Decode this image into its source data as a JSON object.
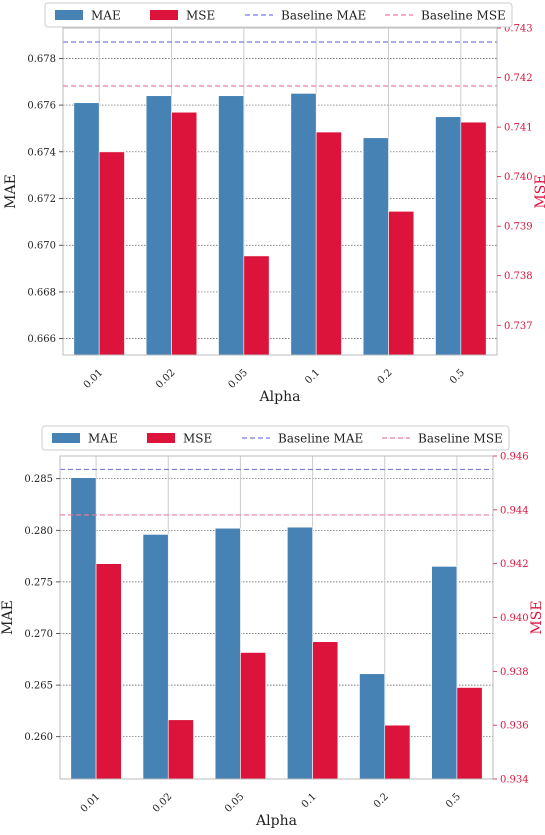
{
  "chart_data": [
    {
      "type": "bar",
      "categories": [
        "0.01",
        "0.02",
        "0.05",
        "0.1",
        "0.2",
        "0.5"
      ],
      "xlabel": "Alpha",
      "ylabel_left": "MAE",
      "ylabel_right": "MSE",
      "left_axis": {
        "ylim": [
          0.6653,
          0.6793
        ],
        "ticks": [
          "0.666",
          "0.668",
          "0.670",
          "0.672",
          "0.674",
          "0.676",
          "0.678"
        ]
      },
      "right_axis": {
        "ylim": [
          0.7364,
          0.743
        ],
        "ticks": [
          "0.737",
          "0.738",
          "0.739",
          "0.740",
          "0.741",
          "0.742",
          "0.743"
        ]
      },
      "series": [
        {
          "name": "MAE",
          "axis": "left",
          "color": "#4682b4",
          "values": [
            0.6761,
            0.6764,
            0.6764,
            0.6765,
            0.6746,
            0.6755
          ]
        },
        {
          "name": "MSE",
          "axis": "right",
          "color": "#dc143c",
          "values": [
            0.7405,
            0.7413,
            0.7384,
            0.7409,
            0.7393,
            0.7411
          ]
        }
      ],
      "baselines": [
        {
          "name": "Baseline MAE",
          "axis": "left",
          "value": 0.6787,
          "color": "#7b7bef"
        },
        {
          "name": "Baseline MSE",
          "axis": "right",
          "value": 0.74183,
          "color": "#ef7b9b"
        }
      ],
      "legend": "top-center",
      "grid": true
    },
    {
      "type": "bar",
      "categories": [
        "0.01",
        "0.02",
        "0.05",
        "0.1",
        "0.2",
        "0.5"
      ],
      "xlabel": "Alpha",
      "ylabel_left": "MAE",
      "ylabel_right": "MSE",
      "left_axis": {
        "ylim": [
          0.2559,
          0.2872
        ],
        "ticks": [
          "0.260",
          "0.265",
          "0.270",
          "0.275",
          "0.280",
          "0.285"
        ]
      },
      "right_axis": {
        "ylim": [
          0.934,
          0.946
        ],
        "ticks": [
          "0.934",
          "0.936",
          "0.938",
          "0.940",
          "0.942",
          "0.944",
          "0.946"
        ]
      },
      "series": [
        {
          "name": "MAE",
          "axis": "left",
          "color": "#4682b4",
          "values": [
            0.2851,
            0.2796,
            0.2802,
            0.2803,
            0.2661,
            0.2765
          ]
        },
        {
          "name": "MSE",
          "axis": "right",
          "color": "#dc143c",
          "values": [
            0.942,
            0.9362,
            0.9387,
            0.9391,
            0.936,
            0.9374
          ]
        }
      ],
      "baselines": [
        {
          "name": "Baseline MAE",
          "axis": "left",
          "value": 0.2859,
          "color": "#7b7bef"
        },
        {
          "name": "Baseline MSE",
          "axis": "right",
          "value": 0.94381,
          "color": "#ef7b9b"
        }
      ],
      "legend": "top-center",
      "grid": true
    }
  ]
}
